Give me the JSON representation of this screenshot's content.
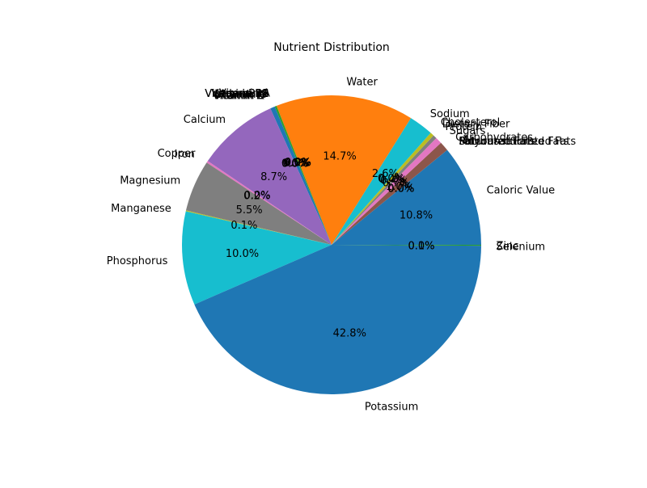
{
  "chart_data": {
    "type": "pie",
    "title": "Nutrient Distribution",
    "autopct_format": "{:.1f}%",
    "start_angle_deg": 0,
    "direction": "counterclockwise",
    "slices": [
      {
        "label": "Caloric Value",
        "value": 10.8,
        "color": "#1f77b4"
      },
      {
        "label": "Fat",
        "value": 0.0,
        "color": "#ff7f0e"
      },
      {
        "label": "Saturated Fats",
        "value": 0.0,
        "color": "#2ca02c"
      },
      {
        "label": "Monounsaturated Fats",
        "value": 0.0,
        "color": "#d62728"
      },
      {
        "label": "Polyunsaturated Fats",
        "value": 0.0,
        "color": "#9467bd"
      },
      {
        "label": "Carbohydrates",
        "value": 1.0,
        "color": "#8c564b"
      },
      {
        "label": "Sugars",
        "value": 0.7,
        "color": "#e377c2"
      },
      {
        "label": "Protein",
        "value": 0.4,
        "color": "#7f7f7f"
      },
      {
        "label": "Dietary Fiber",
        "value": 0.4,
        "color": "#bcbd22"
      },
      {
        "label": "Cholesterol",
        "value": 0.0,
        "color": "#17becf"
      },
      {
        "label": "Sodium",
        "value": 2.6,
        "color": "#17becf"
      },
      {
        "label": "Water",
        "value": 14.7,
        "color": "#ff7f0e"
      },
      {
        "label": "Vitamin A",
        "value": 0.2,
        "color": "#2ca02c"
      },
      {
        "label": "Vitamin B1",
        "value": 0.0,
        "color": "#d62728"
      },
      {
        "label": "Vitamin B11",
        "value": 0.0,
        "color": "#9467bd"
      },
      {
        "label": "Vitamin B12",
        "value": 0.0,
        "color": "#8c564b"
      },
      {
        "label": "Vitamin B2",
        "value": 0.0,
        "color": "#e377c2"
      },
      {
        "label": "Vitamin B3",
        "value": 0.0,
        "color": "#7f7f7f"
      },
      {
        "label": "Vitamin B5",
        "value": 0.0,
        "color": "#bcbd22"
      },
      {
        "label": "Vitamin B6",
        "value": 0.0,
        "color": "#17becf"
      },
      {
        "label": "Vitamin C",
        "value": 0.5,
        "color": "#1f77b4"
      },
      {
        "label": "Vitamin D",
        "value": 0.0,
        "color": "#ff7f0e"
      },
      {
        "label": "Vitamin E",
        "value": 0.0,
        "color": "#2ca02c"
      },
      {
        "label": "Vitamin K",
        "value": 0.0,
        "color": "#d62728"
      },
      {
        "label": "Calcium",
        "value": 8.7,
        "color": "#9467bd"
      },
      {
        "label": "Copper",
        "value": 0.0,
        "color": "#8c564b"
      },
      {
        "label": "Iron",
        "value": 0.2,
        "color": "#e377c2"
      },
      {
        "label": "Magnesium",
        "value": 5.5,
        "color": "#7f7f7f"
      },
      {
        "label": "Manganese",
        "value": 0.1,
        "color": "#bcbd22"
      },
      {
        "label": "Phosphorus",
        "value": 10.0,
        "color": "#17becf"
      },
      {
        "label": "Potassium",
        "value": 42.8,
        "color": "#1f77b4"
      },
      {
        "label": "Selenium",
        "value": 0.0,
        "color": "#ff7f0e"
      },
      {
        "label": "Zinc",
        "value": 0.1,
        "color": "#2ca02c"
      }
    ]
  }
}
